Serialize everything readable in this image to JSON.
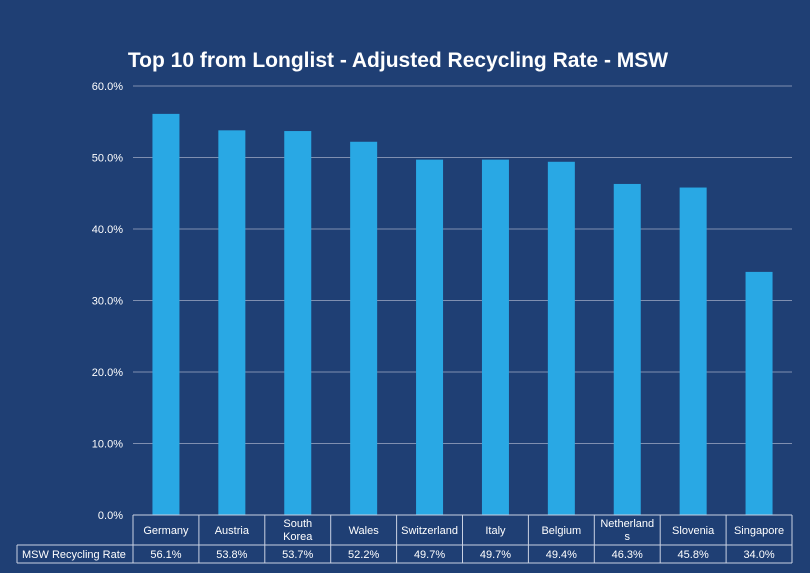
{
  "chart_data": {
    "type": "bar",
    "title": "Top 10 from Longlist - Adjusted Recycling Rate - MSW",
    "categories": [
      [
        "Germany"
      ],
      [
        "Austria"
      ],
      [
        "South",
        "Korea"
      ],
      [
        "Wales"
      ],
      [
        "Switzerland"
      ],
      [
        "Italy"
      ],
      [
        "Belgium"
      ],
      [
        "Netherland",
        "s"
      ],
      [
        "Slovenia"
      ],
      [
        "Singapore"
      ]
    ],
    "series": [
      {
        "name": "MSW Recycling Rate",
        "values": [
          56.1,
          53.8,
          53.7,
          52.2,
          49.7,
          49.7,
          49.4,
          46.3,
          45.8,
          34.0
        ],
        "labels": [
          "56.1%",
          "53.8%",
          "53.7%",
          "52.2%",
          "49.7%",
          "49.7%",
          "49.4%",
          "46.3%",
          "45.8%",
          "34.0%"
        ]
      }
    ],
    "ylim": [
      0,
      60
    ],
    "yticks": [
      "0.0%",
      "10.0%",
      "20.0%",
      "30.0%",
      "40.0%",
      "50.0%",
      "60.0%"
    ],
    "xlabel": "",
    "ylabel": "",
    "grid": true,
    "bar_color": "#29a8e4",
    "background_color": "#1f3f74",
    "data_table": true
  }
}
